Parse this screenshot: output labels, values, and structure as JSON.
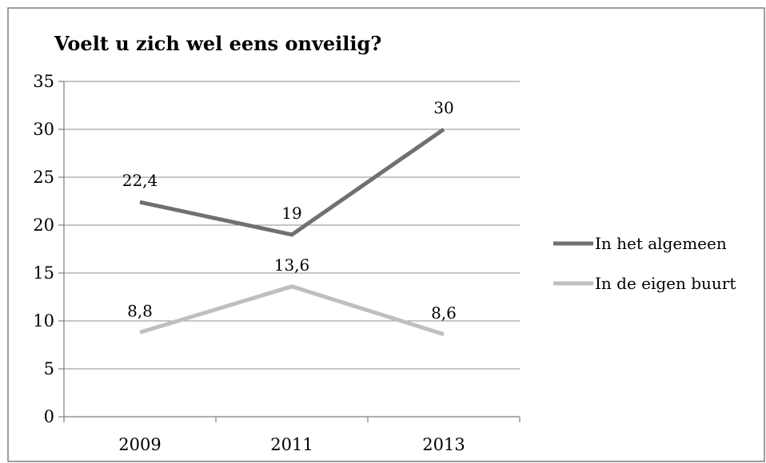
{
  "chart_data": {
    "type": "line",
    "title": "Voelt u zich wel eens onveilig?",
    "categories": [
      "2009",
      "2011",
      "2013"
    ],
    "ylim": [
      0,
      35
    ],
    "yticks": [
      0,
      5,
      10,
      15,
      20,
      25,
      30,
      35
    ],
    "grid": true,
    "legend_position": "right",
    "series": [
      {
        "name": "In het algemeen",
        "values": [
          22.4,
          19,
          30
        ],
        "labels": [
          "22,4",
          "19",
          "30"
        ],
        "color": "#707070"
      },
      {
        "name": "In de eigen buurt",
        "values": [
          8.8,
          13.6,
          8.6
        ],
        "labels": [
          "8,8",
          "13,6",
          "8,6"
        ],
        "color": "#bfbfbf"
      }
    ]
  }
}
